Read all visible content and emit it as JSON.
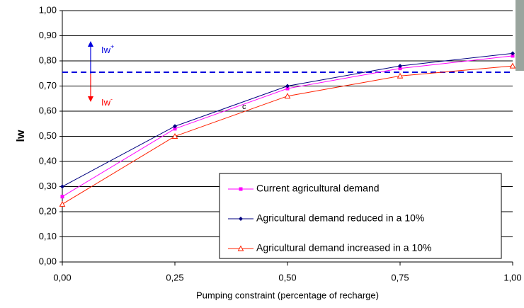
{
  "chart_data": {
    "type": "line",
    "x_label": "Pumping constraint (percentage of recharge)",
    "y_label": "Iw",
    "x": [
      0,
      0.25,
      0.5,
      0.75,
      1
    ],
    "xlim": [
      0,
      1
    ],
    "xticks": [
      {
        "value": 0,
        "label": "0,00"
      },
      {
        "value": 0.25,
        "label": "0,25"
      },
      {
        "value": 0.5,
        "label": "0,50"
      },
      {
        "value": 0.75,
        "label": "0,75"
      },
      {
        "value": 1,
        "label": "1,00"
      }
    ],
    "ylim": [
      0,
      1
    ],
    "yticks": [
      {
        "value": 0,
        "label": "0,00"
      },
      {
        "value": 0.1,
        "label": "0,10"
      },
      {
        "value": 0.2,
        "label": "0,20"
      },
      {
        "value": 0.3,
        "label": "0,30"
      },
      {
        "value": 0.4,
        "label": "0,40"
      },
      {
        "value": 0.5,
        "label": "0,50"
      },
      {
        "value": 0.6,
        "label": "0,60"
      },
      {
        "value": 0.7,
        "label": "0,70"
      },
      {
        "value": 0.8,
        "label": "0,80"
      },
      {
        "value": 0.9,
        "label": "0,90"
      },
      {
        "value": 1,
        "label": "1,00"
      }
    ],
    "grid": true,
    "series": [
      {
        "name": "Current agricultural demand",
        "color": "#ff00ff",
        "marker": "square",
        "values": [
          0.26,
          0.53,
          0.69,
          0.77,
          0.82
        ]
      },
      {
        "name": "Agricultural demand reduced in a 10%",
        "color": "#000080",
        "marker": "diamond",
        "values": [
          0.3,
          0.54,
          0.7,
          0.78,
          0.83
        ]
      },
      {
        "name": "Agricultural demand increased in a 10%",
        "color": "#ff2000",
        "marker": "triangle",
        "values": [
          0.23,
          0.5,
          0.66,
          0.74,
          0.78
        ]
      }
    ],
    "threshold": {
      "value": 0.755,
      "color": "#0000dd"
    },
    "annotations": {
      "upper": {
        "text": "Iw",
        "sup": "+"
      },
      "lower": {
        "text": "Iw",
        "sup": "-"
      },
      "point": "c"
    }
  }
}
